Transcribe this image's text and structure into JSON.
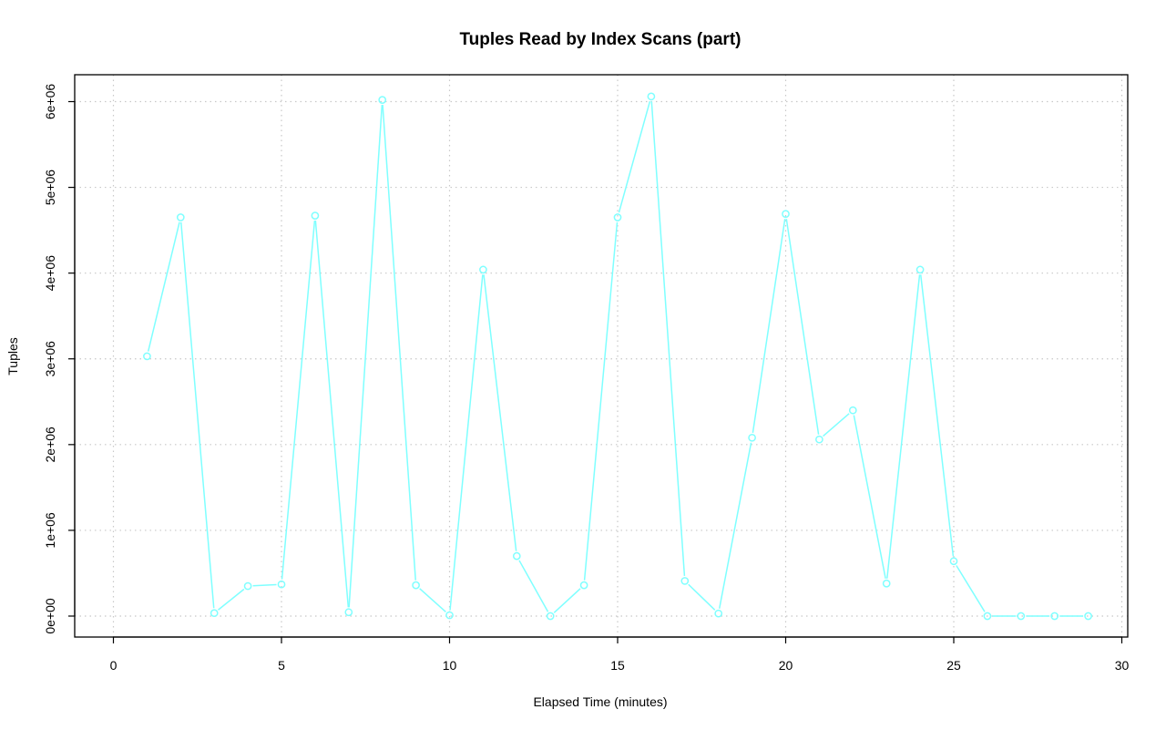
{
  "chart_data": {
    "type": "line",
    "title": "Tuples Read by Index Scans (part)",
    "xlabel": "Elapsed Time (minutes)",
    "ylabel": "Tuples",
    "xlim": [
      0,
      30
    ],
    "ylim": [
      0,
      6000000
    ],
    "x_ticks": [
      0,
      5,
      10,
      15,
      20,
      25,
      30
    ],
    "x_tick_labels": [
      "0",
      "5",
      "10",
      "15",
      "20",
      "25",
      "30"
    ],
    "y_ticks": [
      0,
      1000000,
      2000000,
      3000000,
      4000000,
      5000000,
      6000000
    ],
    "y_tick_labels": [
      "0e+00",
      "1e+06",
      "2e+06",
      "3e+06",
      "4e+06",
      "5e+06",
      "6e+06"
    ],
    "grid": true,
    "legend": "none",
    "line_color": "#7fffff",
    "series": [
      {
        "x": [
          1,
          2,
          3,
          4,
          5,
          6,
          7,
          8,
          9,
          10,
          11,
          12,
          13,
          14,
          15,
          16,
          17,
          18,
          19,
          20,
          21,
          22,
          23,
          24,
          25,
          26,
          27,
          28,
          29
        ],
        "values": [
          3030000,
          4650000,
          35000,
          350000,
          370000,
          4670000,
          45000,
          6020000,
          360000,
          10000,
          4040000,
          700000,
          0,
          360000,
          4650000,
          6060000,
          410000,
          30000,
          2080000,
          4690000,
          2060000,
          2400000,
          380000,
          4040000,
          640000,
          0,
          0,
          0,
          0
        ]
      }
    ]
  }
}
